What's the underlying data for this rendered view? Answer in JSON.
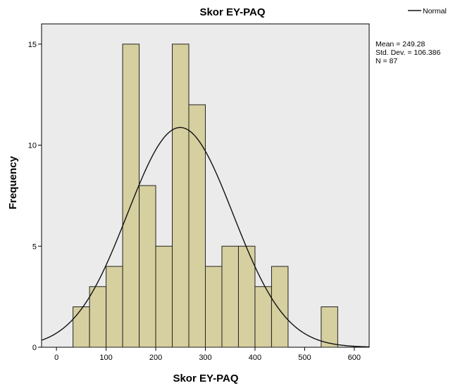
{
  "chart_data": {
    "type": "bar",
    "title": "Skor EY-PAQ",
    "xlabel": "Skor EY-PAQ",
    "ylabel": "Frequency",
    "bin_width": 33.33,
    "bins": [
      {
        "start": 33.33,
        "count": 2
      },
      {
        "start": 66.67,
        "count": 3
      },
      {
        "start": 100.0,
        "count": 4
      },
      {
        "start": 133.33,
        "count": 15
      },
      {
        "start": 166.67,
        "count": 8
      },
      {
        "start": 200.0,
        "count": 5
      },
      {
        "start": 233.33,
        "count": 15
      },
      {
        "start": 266.67,
        "count": 12
      },
      {
        "start": 300.0,
        "count": 4
      },
      {
        "start": 333.33,
        "count": 5
      },
      {
        "start": 366.67,
        "count": 5
      },
      {
        "start": 400.0,
        "count": 3
      },
      {
        "start": 433.33,
        "count": 4
      },
      {
        "start": 533.33,
        "count": 2
      }
    ],
    "xlim": [
      -30,
      630
    ],
    "ylim": [
      0,
      16
    ],
    "xticks": [
      0,
      100,
      200,
      300,
      400,
      500,
      600
    ],
    "yticks": [
      0,
      5,
      10,
      15
    ],
    "normal_curve": {
      "mean": 249.28,
      "std": 106.386,
      "n": 87
    },
    "legend": {
      "label": "Normal",
      "placement": "top-right"
    },
    "stats_lines": [
      "Mean = 249.28",
      "Std. Dev. = 106.386",
      "N = 87"
    ],
    "colors": {
      "plot_bg": "#ebebeb",
      "bar_fill": "#d6cf9f",
      "bar_stroke": "#222222",
      "curve": "#111111"
    },
    "grid": false
  }
}
